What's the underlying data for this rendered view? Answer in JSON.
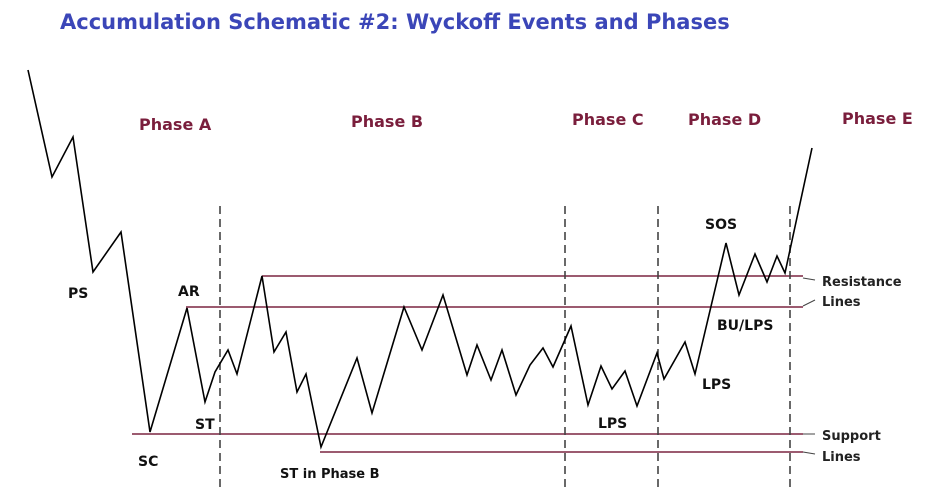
{
  "title": "Accumulation Schematic #2: Wyckoff Events and Phases",
  "phases": {
    "a": "Phase A",
    "b": "Phase B",
    "c": "Phase C",
    "d": "Phase D",
    "e": "Phase E"
  },
  "events": {
    "ps": "PS",
    "sc": "SC",
    "ar": "AR",
    "st": "ST",
    "st_phase_b": "ST in Phase B",
    "lps_c": "LPS",
    "lps_d": "LPS",
    "sos": "SOS",
    "bu_lps": "BU/LPS"
  },
  "side_labels": {
    "resistance_1": "Resistance",
    "resistance_2": "Lines",
    "support_1": "Support",
    "support_2": "Lines"
  },
  "colors": {
    "title": "#3b46b8",
    "phase_labels": "#7a1e3c",
    "level_lines": "#7b2540",
    "price_path": "#000000",
    "phase_dividers": "#444444"
  }
}
